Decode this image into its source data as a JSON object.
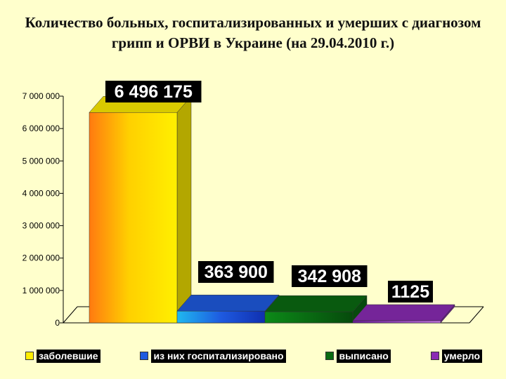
{
  "title": "Количество больных, госпитализированных и умерших с диагнозом грипп и ОРВИ в Украине (на 29.04.2010 г.)",
  "chart_data": {
    "type": "bar",
    "title": "Количество больных, госпитализированных и умерших с диагнозом грипп и ОРВИ в Украине (на 29.04.2010 г.)",
    "ylim": [
      0,
      7000000
    ],
    "yticks": [
      "0",
      "1 000 000",
      "2 000 000",
      "3 000 000",
      "4 000 000",
      "5 000 000",
      "6 000 000",
      "7 000 000"
    ],
    "legend_position": "bottom",
    "series": [
      {
        "name": "заболевшие",
        "value": 6496175,
        "label": "6 496 175",
        "color": "#FFEE00"
      },
      {
        "name": "из них госпитализировано",
        "value": 363900,
        "label": "363 900",
        "color": "#1E5AE0"
      },
      {
        "name": "выписано",
        "value": 342908,
        "label": "342 908",
        "color": "#0A6A12"
      },
      {
        "name": "умерло",
        "value": 1125,
        "label": "1125",
        "color": "#8A2BB4"
      }
    ]
  }
}
